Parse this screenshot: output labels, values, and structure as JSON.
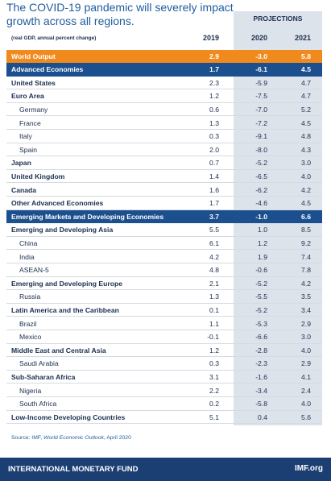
{
  "header": {
    "title_line1": "The COVID-19 pandemic will severely impact",
    "title_line2": "growth across all regions."
  },
  "table": {
    "group_header": "PROJECTIONS",
    "unit_note": "(real GDP, annual percent change)",
    "columns": [
      "2019",
      "2020",
      "2021"
    ],
    "rows": [
      [
        "World Output",
        "2.9",
        "-3.0",
        "5.8"
      ],
      [
        "Advanced Economies",
        "1.7",
        "-6.1",
        "4.5"
      ],
      [
        "United States",
        "2.3",
        "-5.9",
        "4.7"
      ],
      [
        "Euro Area",
        "1.2",
        "-7.5",
        "4.7"
      ],
      [
        "Germany",
        "0.6",
        "-7.0",
        "5.2"
      ],
      [
        "France",
        "1.3",
        "-7.2",
        "4.5"
      ],
      [
        "Italy",
        "0.3",
        "-9.1",
        "4.8"
      ],
      [
        "Spain",
        "2.0",
        "-8.0",
        "4.3"
      ],
      [
        "Japan",
        "0.7",
        "-5.2",
        "3.0"
      ],
      [
        "United Kingdom",
        "1.4",
        "-6.5",
        "4.0"
      ],
      [
        "Canada",
        "1.6",
        "-6.2",
        "4.2"
      ],
      [
        "Other Advanced Economies",
        "1.7",
        "-4.6",
        "4.5"
      ],
      [
        "Emerging Markets and Developing Economies",
        "3.7",
        "-1.0",
        "6.6"
      ],
      [
        "Emerging and Developing Asia",
        "5.5",
        "1.0",
        "8.5"
      ],
      [
        "China",
        "6.1",
        "1.2",
        "9.2"
      ],
      [
        "India",
        "4.2",
        "1.9",
        "7.4"
      ],
      [
        "ASEAN-5",
        "4.8",
        "-0.6",
        "7.8"
      ],
      [
        "Emerging and Developing Europe",
        "2.1",
        "-5.2",
        "4.2"
      ],
      [
        "Russia",
        "1.3",
        "-5.5",
        "3.5"
      ],
      [
        "Latin America and the Caribbean",
        "0.1",
        "-5.2",
        "3.4"
      ],
      [
        "Brazil",
        "1.1",
        "-5.3",
        "2.9"
      ],
      [
        "Mexico",
        "-0.1",
        "-6.6",
        "3.0"
      ],
      [
        "Middle East and Central Asia",
        "1.2",
        "-2.8",
        "4.0"
      ],
      [
        "Saudi Arabia",
        "0.3",
        "-2.3",
        "2.9"
      ],
      [
        "Sub-Saharan Africa",
        "3.1",
        "-1.6",
        "4.1"
      ],
      [
        "Nigeria",
        "2.2",
        "-3.4",
        "2.4"
      ],
      [
        "South Africa",
        "0.2",
        "-5.8",
        "4.0"
      ],
      [
        "Low-Income Developing Countries",
        "5.1",
        "0.4",
        "5.6"
      ]
    ]
  },
  "source": {
    "prefix": "Source: IMF, ",
    "publication": "World Economic Outlook",
    "suffix": ", April 2020"
  },
  "footer": {
    "left": "INTERNATIONAL MONETARY FUND",
    "right": "IMF.org"
  }
}
